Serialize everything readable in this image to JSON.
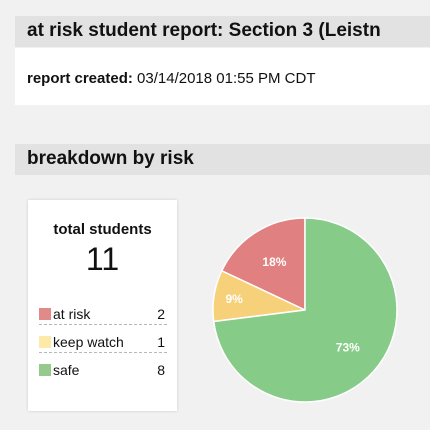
{
  "report": {
    "title": "at risk student report: Section 3 (Leistn",
    "created_label": "report created:",
    "created_value": "03/14/2018 01:55 PM CDT"
  },
  "breakdown": {
    "title": "breakdown by risk",
    "total_label": "total students",
    "total_value": "11",
    "legend": [
      {
        "label": "at risk",
        "count": "2",
        "color": "#e08a8a"
      },
      {
        "label": "keep watch",
        "count": "1",
        "color": "#fde9a8"
      },
      {
        "label": "safe",
        "count": "8",
        "color": "#98c98c"
      }
    ]
  },
  "chart_data": {
    "type": "pie",
    "slices": [
      {
        "label": "at risk",
        "value": 18,
        "display": "18%",
        "color": "#e08080"
      },
      {
        "label": "keep watch",
        "value": 9,
        "display": "9%",
        "color": "#f7d07a"
      },
      {
        "label": "safe",
        "value": 73,
        "display": "73%",
        "color": "#86cc88"
      }
    ]
  }
}
